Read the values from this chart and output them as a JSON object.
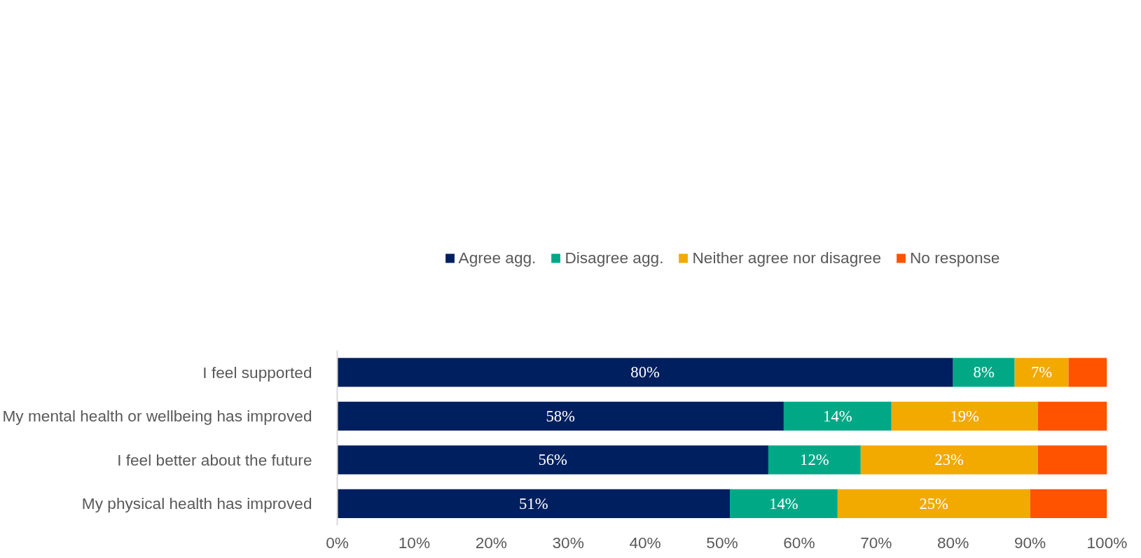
{
  "chart_data": {
    "type": "bar",
    "orientation": "horizontal",
    "stacked": true,
    "categories": [
      "I feel supported",
      "My mental health or wellbeing has improved",
      "I feel better about the future",
      "My physical health has improved"
    ],
    "series": [
      {
        "name": "Agree agg.",
        "color": "#001f5f",
        "values": [
          80,
          58,
          56,
          51
        ],
        "value_labels": [
          "80%",
          "58%",
          "56%",
          "51%"
        ]
      },
      {
        "name": "Disagree agg.",
        "color": "#00a886",
        "values": [
          8,
          14,
          12,
          14
        ],
        "value_labels": [
          "8%",
          "14%",
          "12%",
          "14%"
        ]
      },
      {
        "name": "Neither agree nor disagree",
        "color": "#f2a900",
        "values": [
          7,
          19,
          23,
          25
        ],
        "value_labels": [
          "7%",
          "19%",
          "23%",
          "25%"
        ]
      },
      {
        "name": "No response",
        "color": "#ff5300",
        "values": [
          5,
          9,
          9,
          10
        ]
      }
    ],
    "xlim": [
      0,
      100
    ],
    "xticks": [
      {
        "value": 0,
        "label": "0%"
      },
      {
        "value": 10,
        "label": "10%"
      },
      {
        "value": 20,
        "label": "20%"
      },
      {
        "value": 30,
        "label": "30%"
      },
      {
        "value": 40,
        "label": "40%"
      },
      {
        "value": 50,
        "label": "50%"
      },
      {
        "value": 60,
        "label": "60%"
      },
      {
        "value": 70,
        "label": "70%"
      },
      {
        "value": 80,
        "label": "80%"
      },
      {
        "value": 90,
        "label": "90%"
      },
      {
        "value": 100,
        "label": "100%"
      }
    ],
    "grid": false,
    "legend": "top"
  }
}
